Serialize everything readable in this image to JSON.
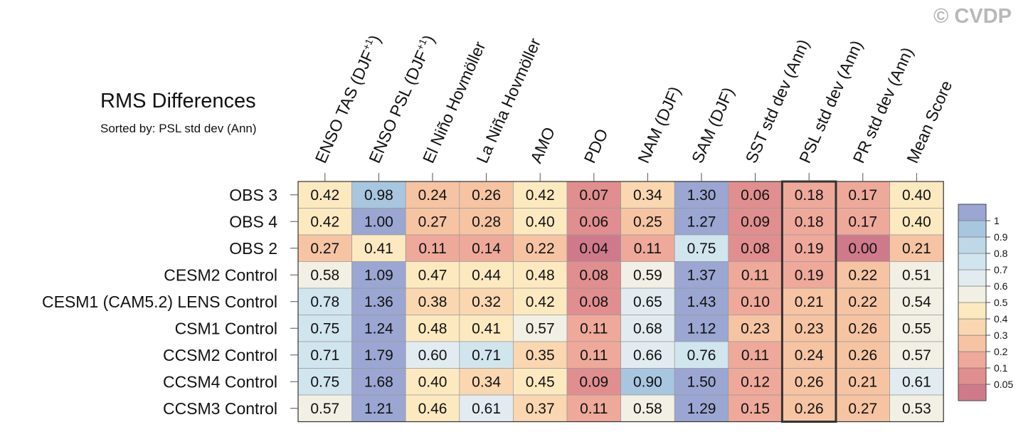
{
  "header": {
    "title": "RMS Differences",
    "subtitle": "Sorted by: PSL std dev (Ann)",
    "watermark": "© CVDP"
  },
  "chart_data": {
    "type": "heatmap",
    "title": "RMS Differences",
    "subtitle": "Sorted by: PSL std dev (Ann)",
    "highlighted_column": "PSL std dev (Ann)",
    "columns": [
      {
        "label": "ENSO TAS (DJF",
        "sup": "+1",
        "suffix": ")"
      },
      {
        "label": "ENSO PSL (DJF",
        "sup": "+1",
        "suffix": ")"
      },
      {
        "label": "El Niño Hovmöller"
      },
      {
        "label": "La Niña Hovmöller"
      },
      {
        "label": "AMO"
      },
      {
        "label": "PDO"
      },
      {
        "label": "NAM (DJF)"
      },
      {
        "label": "SAM (DJF)"
      },
      {
        "label": "SST std dev (Ann)"
      },
      {
        "label": "PSL std dev (Ann)"
      },
      {
        "label": "PR std dev (Ann)"
      },
      {
        "label": "Mean Score"
      }
    ],
    "rows": [
      {
        "name": "OBS 3",
        "values": [
          "0.42",
          "0.98",
          "0.24",
          "0.26",
          "0.42",
          "0.07",
          "0.34",
          "1.30",
          "0.06",
          "0.18",
          "0.17",
          "0.40"
        ]
      },
      {
        "name": "OBS 4",
        "values": [
          "0.42",
          "1.00",
          "0.27",
          "0.28",
          "0.40",
          "0.06",
          "0.25",
          "1.27",
          "0.09",
          "0.18",
          "0.17",
          "0.40"
        ]
      },
      {
        "name": "OBS 2",
        "values": [
          "0.27",
          "0.41",
          "0.11",
          "0.14",
          "0.22",
          "0.04",
          "0.11",
          "0.75",
          "0.08",
          "0.19",
          "0.00",
          "0.21"
        ]
      },
      {
        "name": "CESM2 Control",
        "values": [
          "0.58",
          "1.09",
          "0.47",
          "0.44",
          "0.48",
          "0.08",
          "0.59",
          "1.37",
          "0.11",
          "0.19",
          "0.22",
          "0.51"
        ]
      },
      {
        "name": "CESM1 (CAM5.2) LENS Control",
        "values": [
          "0.78",
          "1.36",
          "0.38",
          "0.32",
          "0.42",
          "0.08",
          "0.65",
          "1.43",
          "0.10",
          "0.21",
          "0.22",
          "0.54"
        ]
      },
      {
        "name": "CSM1 Control",
        "values": [
          "0.75",
          "1.24",
          "0.48",
          "0.41",
          "0.57",
          "0.11",
          "0.68",
          "1.12",
          "0.23",
          "0.23",
          "0.26",
          "0.55"
        ]
      },
      {
        "name": "CCSM2 Control",
        "values": [
          "0.71",
          "1.79",
          "0.60",
          "0.71",
          "0.35",
          "0.11",
          "0.66",
          "0.76",
          "0.11",
          "0.24",
          "0.26",
          "0.57"
        ]
      },
      {
        "name": "CCSM4 Control",
        "values": [
          "0.75",
          "1.68",
          "0.40",
          "0.34",
          "0.45",
          "0.09",
          "0.90",
          "1.50",
          "0.12",
          "0.26",
          "0.21",
          "0.61"
        ]
      },
      {
        "name": "CCSM3 Control",
        "values": [
          "0.57",
          "1.21",
          "0.46",
          "0.61",
          "0.37",
          "0.11",
          "0.58",
          "1.29",
          "0.15",
          "0.26",
          "0.27",
          "0.53"
        ]
      }
    ],
    "colorbar": {
      "thresholds": [
        0.05,
        0.1,
        0.2,
        0.3,
        0.4,
        0.5,
        0.6,
        0.7,
        0.8,
        0.9,
        1
      ],
      "labels": [
        "0.05",
        "0.1",
        "0.2",
        "0.3",
        "0.4",
        "0.5",
        "0.6",
        "0.7",
        "0.8",
        "0.9",
        "1"
      ],
      "colors": [
        "#cf7a8b",
        "#e08e8f",
        "#eea99b",
        "#f6c4a3",
        "#fad7b0",
        "#fde9c0",
        "#f2f0e4",
        "#e2ecf0",
        "#d1e5ee",
        "#bfd8e8",
        "#a9c6e0",
        "#9ba6d2"
      ]
    }
  }
}
